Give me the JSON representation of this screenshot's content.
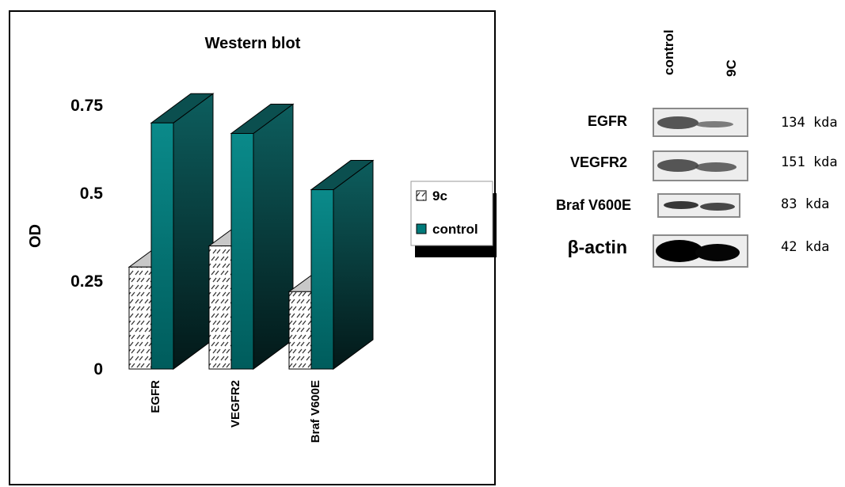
{
  "chart_data": {
    "type": "bar",
    "title": "Western blot",
    "xlabel": "",
    "ylabel": "OD",
    "ylim": [
      0,
      0.75
    ],
    "yticks": [
      "0",
      "0.25",
      "0.5",
      "0.75"
    ],
    "categories": [
      "EGFR",
      "VEGFR2",
      "Braf V600E"
    ],
    "series": [
      {
        "name": "9c",
        "values": [
          0.29,
          0.35,
          0.22
        ],
        "color": "#ffffff",
        "pattern": "hatched"
      },
      {
        "name": "control",
        "values": [
          0.7,
          0.67,
          0.51
        ],
        "color": "#007a7a"
      }
    ],
    "legend_position": "right",
    "style": "3d-bar"
  },
  "blot": {
    "lanes": [
      "control",
      "9C"
    ],
    "rows": [
      {
        "protein": "EGFR",
        "kda": "134 kda",
        "intensity": [
          0.55,
          0.35
        ]
      },
      {
        "protein": "VEGFR2",
        "kda": "151 kda",
        "intensity": [
          0.6,
          0.45
        ]
      },
      {
        "protein": "Braf V600E",
        "kda": "83 kda",
        "intensity": [
          0.7,
          0.6
        ]
      },
      {
        "protein": "β-actin",
        "kda": "42 kda",
        "intensity": [
          1.0,
          1.0
        ]
      }
    ]
  }
}
